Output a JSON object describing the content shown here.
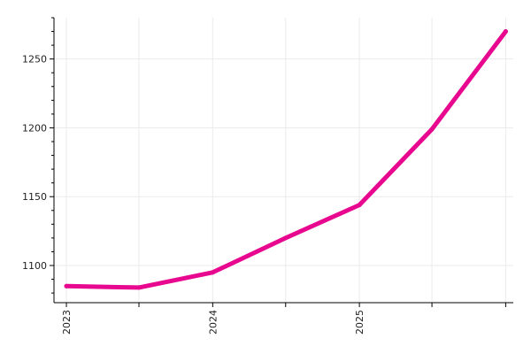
{
  "chart_data": {
    "type": "line",
    "title": "",
    "xlabel": "",
    "ylabel": "",
    "x": [
      "2023-01-01",
      "2023-07-01",
      "2024-01-01",
      "2024-07-01",
      "2025-01-01",
      "2025-07-01",
      "2026-01-01"
    ],
    "series": [
      {
        "values": [
          1085,
          1084,
          1095,
          1120,
          1144,
          1199,
          1270
        ]
      }
    ],
    "x_ticks": [
      {
        "date": "2023-01-01",
        "label": "2023"
      },
      {
        "date": "2023-07-01",
        "label": ""
      },
      {
        "date": "2024-01-01",
        "label": "2024"
      },
      {
        "date": "2024-07-01",
        "label": ""
      },
      {
        "date": "2025-01-01",
        "label": "2025"
      },
      {
        "date": "2025-07-01",
        "label": ""
      },
      {
        "date": "2026-01-01",
        "label": ""
      }
    ],
    "y_ticks": [
      1100,
      1150,
      1200,
      1250
    ],
    "xlim": [
      "2022-12-01",
      "2026-01-20"
    ],
    "ylim": [
      1073,
      1280
    ],
    "grid": true,
    "legend": "none",
    "colors": {
      "line": "#e8088f",
      "grid": "#ebebeb",
      "axis": "#000000"
    }
  }
}
